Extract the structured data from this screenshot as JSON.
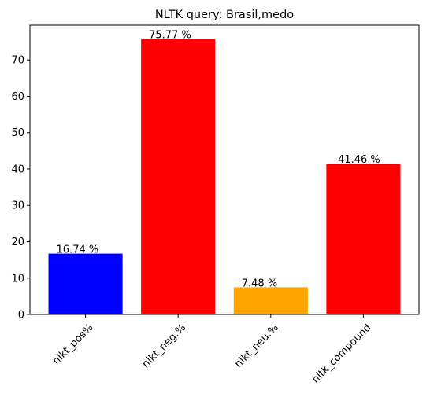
{
  "chart_data": {
    "type": "bar",
    "title": "NLTK query: Brasil,medo",
    "xlabel": "",
    "ylabel": "",
    "categories": [
      "nlkt_pos%",
      "nlkt_neg.%",
      "nlkt_neu.%",
      "nltk_compound"
    ],
    "values": [
      16.74,
      75.77,
      7.48,
      41.46
    ],
    "data_labels": [
      "16.74 %",
      "75.77 %",
      "7.48 %",
      "-41.46 %"
    ],
    "colors": [
      "#0000ff",
      "#ff0000",
      "#ffa500",
      "#ff0000"
    ],
    "ylim": [
      0,
      79.56
    ],
    "yticks": [
      0,
      10,
      20,
      30,
      40,
      50,
      60,
      70
    ],
    "grid": false,
    "legend": "none",
    "xtick_rotation": -45
  }
}
